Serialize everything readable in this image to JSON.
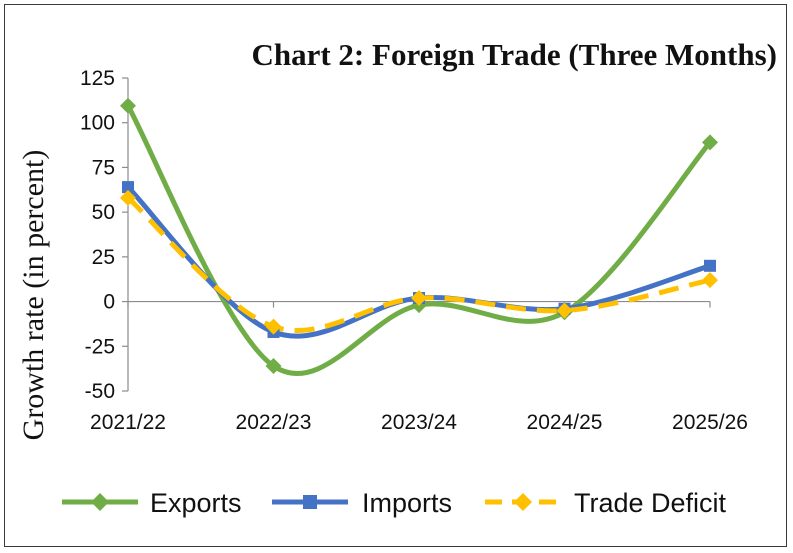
{
  "chart_data": {
    "type": "line",
    "title": "Chart 2: Foreign Trade (Three Months)",
    "xlabel": "",
    "ylabel": "Growth rate (in percent)",
    "categories": [
      "2021/22",
      "2022/23",
      "2023/24",
      "2024/25",
      "2025/26"
    ],
    "ylim": [
      -50,
      125
    ],
    "yticks": [
      125,
      100,
      75,
      50,
      25,
      0,
      -25,
      -50
    ],
    "ytick_labels": [
      "125",
      "100",
      "75",
      "50",
      "25",
      "0",
      "-25",
      "-50"
    ],
    "grid": false,
    "smooth": true,
    "legend_position": "bottom",
    "series": [
      {
        "name": "Exports",
        "values": [
          109.5,
          -36,
          -2,
          -6,
          89
        ],
        "color": "#70AD47",
        "marker": "diamond",
        "dashed": false
      },
      {
        "name": "Imports",
        "values": [
          64,
          -17,
          2,
          -4,
          20
        ],
        "color": "#4472C4",
        "marker": "square",
        "dashed": false
      },
      {
        "name": "Trade Deficit",
        "values": [
          58,
          -14,
          2,
          -5,
          12
        ],
        "color": "#FFC000",
        "marker": "diamond",
        "dashed": true
      }
    ]
  }
}
